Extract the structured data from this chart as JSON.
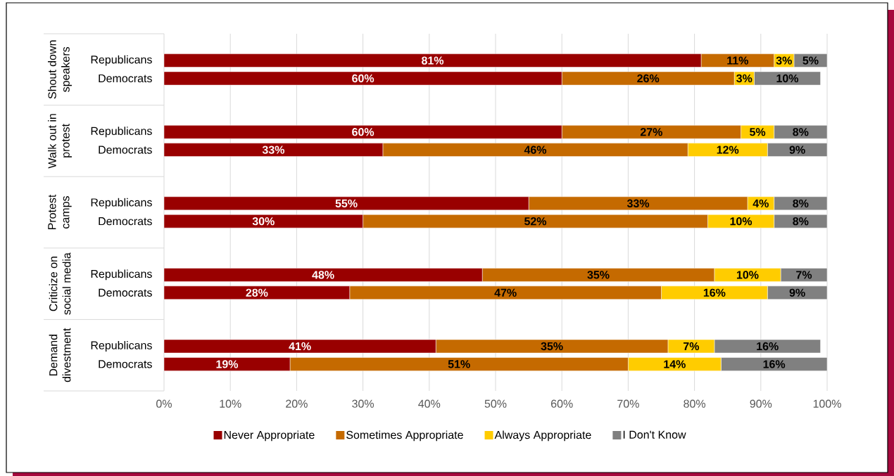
{
  "chart_data": {
    "type": "bar",
    "orientation": "horizontal",
    "stacked": true,
    "categories": [
      null,
      "Republicans",
      "Democrats",
      null,
      null,
      "Republicans",
      "Democrats",
      null,
      null,
      "Republicans",
      "Democrats",
      null,
      null,
      "Republicans",
      "Democrats",
      null,
      null,
      "Republicans",
      "Democrats",
      null
    ],
    "annotations": [
      "Shout down speakers",
      "Walk out in protest",
      "Protest camps",
      "Criticize on social media",
      "Demand divestment"
    ],
    "series": [
      {
        "name": "Never Appropriate",
        "color": "#990000",
        "values": [
          null,
          81,
          60,
          null,
          null,
          60,
          33,
          null,
          null,
          55,
          30,
          null,
          null,
          48,
          28,
          null,
          null,
          41,
          19,
          null
        ],
        "value_labels": [
          null,
          "81%",
          "60%",
          null,
          null,
          "60%",
          "33%",
          null,
          null,
          "55%",
          "30%",
          null,
          null,
          "48%",
          "28%",
          null,
          null,
          "41%",
          "19%",
          null
        ]
      },
      {
        "name": "Sometimes Appropriate",
        "color": "#C56A00",
        "values": [
          null,
          11,
          26,
          null,
          null,
          27,
          46,
          null,
          null,
          33,
          52,
          null,
          null,
          35,
          47,
          null,
          null,
          35,
          51,
          null
        ],
        "value_labels": [
          null,
          "11%",
          "26%",
          null,
          null,
          "27%",
          "46%",
          null,
          null,
          "33%",
          "52%",
          null,
          null,
          "35%",
          "47%",
          null,
          null,
          "35%",
          "51%",
          null
        ]
      },
      {
        "name": "Always Appropriate",
        "color": "#FFCC00",
        "values": [
          null,
          3,
          3,
          null,
          null,
          5,
          12,
          null,
          null,
          4,
          10,
          null,
          null,
          10,
          16,
          null,
          null,
          7,
          14,
          null
        ],
        "value_labels": [
          null,
          "3%",
          "3%",
          null,
          null,
          "5%",
          "12%",
          null,
          null,
          "4%",
          "10%",
          null,
          null,
          "10%",
          "16%",
          null,
          null,
          "7%",
          "14%",
          null
        ]
      },
      {
        "name": "I Don't Know",
        "color": "#808080",
        "values": [
          null,
          5,
          10,
          null,
          null,
          8,
          9,
          null,
          null,
          8,
          8,
          null,
          null,
          7,
          9,
          null,
          null,
          16,
          16,
          null
        ],
        "value_labels": [
          null,
          "5%",
          "10%",
          null,
          null,
          "8%",
          "9%",
          null,
          null,
          "8%",
          "8%",
          null,
          null,
          "7%",
          "9%",
          null,
          null,
          "16%",
          "16%",
          null
        ]
      }
    ],
    "xlim": [
      0,
      100
    ],
    "xticks": [
      {
        "value": 0,
        "label": "0%"
      },
      {
        "value": 10,
        "label": "10%"
      },
      {
        "value": 20,
        "label": "20%"
      },
      {
        "value": 30,
        "label": "30%"
      },
      {
        "value": 40,
        "label": "40%"
      },
      {
        "value": 50,
        "label": "50%"
      },
      {
        "value": 60,
        "label": "60%"
      },
      {
        "value": 70,
        "label": "70%"
      },
      {
        "value": 80,
        "label": "80%"
      },
      {
        "value": 90,
        "label": "90%"
      },
      {
        "value": 100,
        "label": "100%"
      }
    ],
    "grid": "x",
    "legend": "bottom"
  }
}
